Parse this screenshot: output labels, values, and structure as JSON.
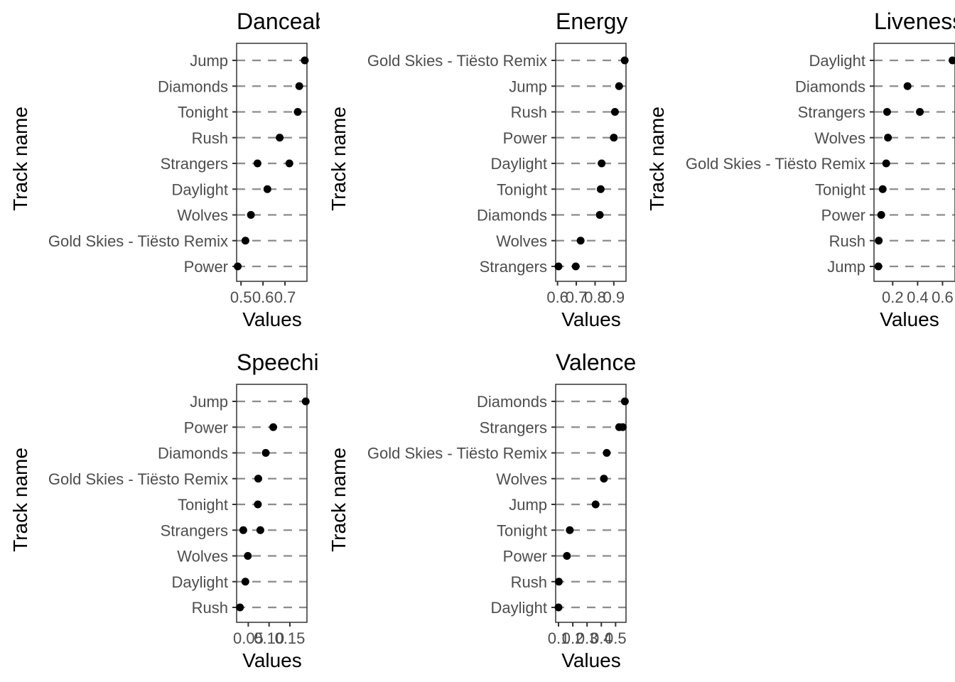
{
  "chart_data": [
    {
      "type": "scatter",
      "title": "Danceability",
      "xlabel": "Values",
      "ylabel": "Track name",
      "xlim": [
        0.48,
        0.8
      ],
      "x_ticks": [
        0.5,
        0.6,
        0.7
      ],
      "x_tick_labels": [
        "0.5",
        "0.6",
        "0.7"
      ],
      "categories": [
        "Jump",
        "Diamonds",
        "Tonight",
        "Rush",
        "Strangers",
        "Daylight",
        "Wolves",
        "Gold Skies - Tiësto Remix",
        "Power"
      ],
      "points": [
        {
          "track": "Jump",
          "value": 0.79
        },
        {
          "track": "Diamonds",
          "value": 0.765
        },
        {
          "track": "Tonight",
          "value": 0.758
        },
        {
          "track": "Rush",
          "value": 0.676
        },
        {
          "track": "Strangers",
          "value": 0.575
        },
        {
          "track": "Strangers",
          "value": 0.72
        },
        {
          "track": "Daylight",
          "value": 0.62
        },
        {
          "track": "Wolves",
          "value": 0.545
        },
        {
          "track": "Gold Skies - Tiësto Remix",
          "value": 0.52
        },
        {
          "track": "Power",
          "value": 0.485
        }
      ]
    },
    {
      "type": "scatter",
      "title": "Energy",
      "xlabel": "Values",
      "ylabel": "Track name",
      "xlim": [
        0.59,
        0.965
      ],
      "x_ticks": [
        0.6,
        0.7,
        0.8,
        0.9
      ],
      "x_tick_labels": [
        "0.6",
        "0.7",
        "0.8",
        "0.9"
      ],
      "categories": [
        "Gold Skies - Tiësto Remix",
        "Jump",
        "Rush",
        "Power",
        "Daylight",
        "Tonight",
        "Diamonds",
        "Wolves",
        "Strangers"
      ],
      "points": [
        {
          "track": "Gold Skies - Tiësto Remix",
          "value": 0.958
        },
        {
          "track": "Jump",
          "value": 0.928
        },
        {
          "track": "Rush",
          "value": 0.906
        },
        {
          "track": "Power",
          "value": 0.9
        },
        {
          "track": "Daylight",
          "value": 0.835
        },
        {
          "track": "Tonight",
          "value": 0.83
        },
        {
          "track": "Diamonds",
          "value": 0.825
        },
        {
          "track": "Wolves",
          "value": 0.723
        },
        {
          "track": "Strangers",
          "value": 0.605
        },
        {
          "track": "Strangers",
          "value": 0.697
        }
      ]
    },
    {
      "type": "scatter",
      "title": "Liveness",
      "xlabel": "Values",
      "ylabel": "Track name",
      "xlim": [
        0.05,
        0.7
      ],
      "x_ticks": [
        0.2,
        0.4,
        0.6
      ],
      "x_tick_labels": [
        "0.2",
        "0.4",
        "0.6"
      ],
      "categories": [
        "Daylight",
        "Diamonds",
        "Strangers",
        "Wolves",
        "Gold Skies - Tiësto Remix",
        "Tonight",
        "Power",
        "Rush",
        "Jump"
      ],
      "points": [
        {
          "track": "Daylight",
          "value": 0.68
        },
        {
          "track": "Diamonds",
          "value": 0.319
        },
        {
          "track": "Strangers",
          "value": 0.155
        },
        {
          "track": "Strangers",
          "value": 0.418
        },
        {
          "track": "Wolves",
          "value": 0.162
        },
        {
          "track": "Gold Skies - Tiësto Remix",
          "value": 0.148
        },
        {
          "track": "Tonight",
          "value": 0.12
        },
        {
          "track": "Power",
          "value": 0.108
        },
        {
          "track": "Rush",
          "value": 0.088
        },
        {
          "track": "Jump",
          "value": 0.085
        }
      ]
    },
    {
      "type": "scatter",
      "title": "Speechiness",
      "xlabel": "Values",
      "ylabel": "Track name",
      "xlim": [
        0.022,
        0.191
      ],
      "x_ticks": [
        0.05,
        0.1,
        0.15
      ],
      "x_tick_labels": [
        "0.05",
        "0.10",
        "0.15"
      ],
      "categories": [
        "Jump",
        "Power",
        "Diamonds",
        "Gold Skies - Tiësto Remix",
        "Tonight",
        "Strangers",
        "Wolves",
        "Daylight",
        "Rush"
      ],
      "points": [
        {
          "track": "Jump",
          "value": 0.188
        },
        {
          "track": "Power",
          "value": 0.11
        },
        {
          "track": "Diamonds",
          "value": 0.092
        },
        {
          "track": "Gold Skies - Tiësto Remix",
          "value": 0.074
        },
        {
          "track": "Tonight",
          "value": 0.073
        },
        {
          "track": "Strangers",
          "value": 0.038
        },
        {
          "track": "Strangers",
          "value": 0.079
        },
        {
          "track": "Wolves",
          "value": 0.049
        },
        {
          "track": "Daylight",
          "value": 0.043
        },
        {
          "track": "Rush",
          "value": 0.03
        }
      ]
    },
    {
      "type": "scatter",
      "title": "Valence",
      "xlabel": "Values",
      "ylabel": "Track name",
      "xlim": [
        0.08,
        0.573
      ],
      "x_ticks": [
        0.1,
        0.2,
        0.3,
        0.4,
        0.5
      ],
      "x_tick_labels": [
        "0.1",
        "0.2",
        "0.3",
        "0.4",
        "0.5"
      ],
      "categories": [
        "Diamonds",
        "Strangers",
        "Gold Skies - Tiësto Remix",
        "Wolves",
        "Jump",
        "Tonight",
        "Power",
        "Rush",
        "Daylight"
      ],
      "points": [
        {
          "track": "Diamonds",
          "value": 0.565
        },
        {
          "track": "Strangers",
          "value": 0.525
        },
        {
          "track": "Strangers",
          "value": 0.55
        },
        {
          "track": "Gold Skies - Tiësto Remix",
          "value": 0.438
        },
        {
          "track": "Wolves",
          "value": 0.418
        },
        {
          "track": "Jump",
          "value": 0.36
        },
        {
          "track": "Tonight",
          "value": 0.179
        },
        {
          "track": "Power",
          "value": 0.159
        },
        {
          "track": "Rush",
          "value": 0.102
        },
        {
          "track": "Daylight",
          "value": 0.1
        }
      ]
    }
  ]
}
